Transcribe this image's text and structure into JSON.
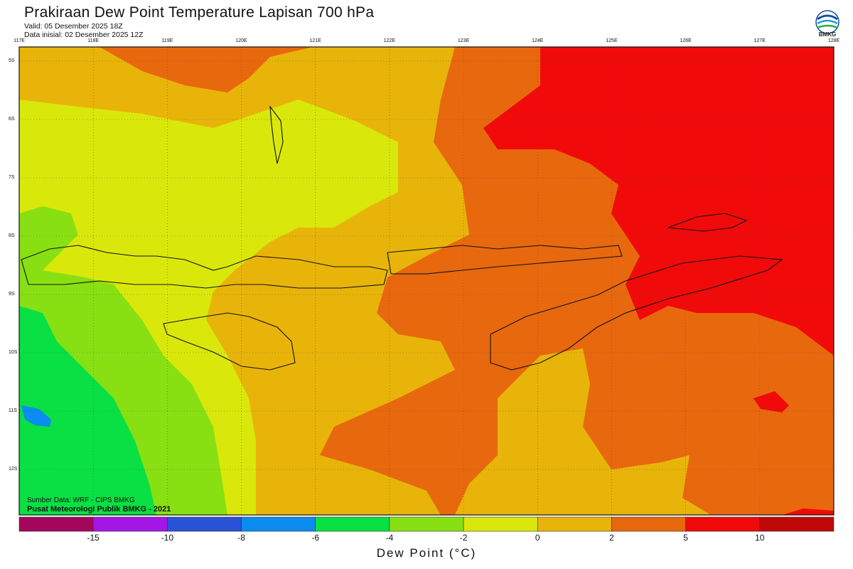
{
  "header": {
    "title": "Prakiraan Dew Point Temperature Lapisan 700 hPa",
    "valid": "Valid: 05 Desember 2025 18Z",
    "init": "Data inisial: 02 Desember 2025 12Z",
    "logo_text": "BMKG"
  },
  "map": {
    "longitude_labels": [
      "117E",
      "118E",
      "119E",
      "120E",
      "121E",
      "122E",
      "123E",
      "124E",
      "125E",
      "126E",
      "127E",
      "128E"
    ],
    "latitude_labels": [
      "5S",
      "6S",
      "7S",
      "8S",
      "9S",
      "10S",
      "11S",
      "12S"
    ],
    "credits": {
      "source": "Sumber Data: WRF - CIPS BMKG",
      "org": "Pusat Meteorologi Publik BMKG - 2021"
    }
  },
  "colorbar": {
    "title": "Dew Point (°C)",
    "labels": [
      "-15",
      "-10",
      "-8",
      "-6",
      "-4",
      "-2",
      "0",
      "2",
      "5",
      "10"
    ],
    "colors": [
      "#a4065c",
      "#a316e6",
      "#2a52d6",
      "#0a8cf0",
      "#09e044",
      "#88e012",
      "#d9e80a",
      "#e8b40a",
      "#e8680e",
      "#f00a0a",
      "#c00808"
    ]
  },
  "colors": {
    "red": "#f00a0a",
    "orange": "#e8680e",
    "gold": "#e8b40a",
    "yellow": "#d9e80a",
    "lime": "#88e012",
    "green": "#09e044",
    "blue": "#0a8cf0"
  }
}
